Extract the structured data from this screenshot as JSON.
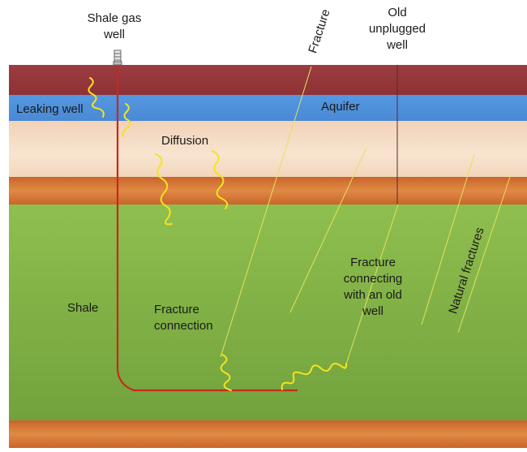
{
  "labels": {
    "shale_gas_well_1": "Shale gas",
    "shale_gas_well_2": "well",
    "fracture_top": "Fracture",
    "old_well_1": "Old",
    "old_well_2": "unplugged",
    "old_well_3": "well",
    "leaking_well": "Leaking well",
    "aquifer": "Aquifer",
    "diffusion": "Diffusion",
    "shale": "Shale",
    "fracture_connection_1": "Fracture",
    "fracture_connection_2": "connection",
    "fracture_old_1": "Fracture",
    "fracture_old_2": "connecting",
    "fracture_old_3": "with an old",
    "fracture_old_4": "well",
    "natural_fractures": "Natural fractures"
  },
  "colors": {
    "top_layer": "#98393d",
    "aquifer": "#4f90dc",
    "sand": "#f6dcc4",
    "orange_band": "#d97a3a",
    "shale": "#82b447",
    "bottom_orange": "#d97a3a",
    "well_line": "#c8281e",
    "fracture_line": "#dede5a",
    "gas_squiggle": "#ffef28"
  },
  "icons": {
    "wellhead": "wellhead-icon"
  }
}
